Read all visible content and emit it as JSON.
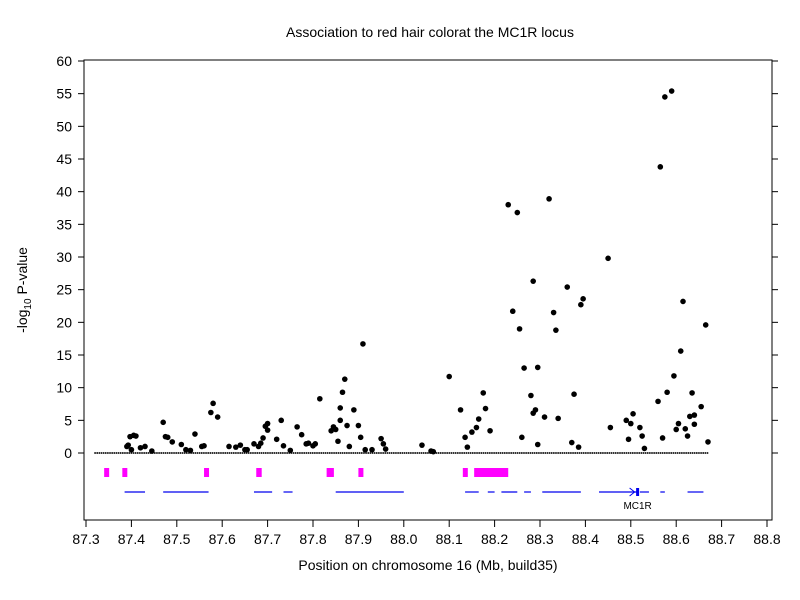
{
  "chart_data": {
    "type": "scatter",
    "title": "Association to red hair colorat the MC1R locus",
    "xlabel": "Position on chromosome 16 (Mb, build35)",
    "ylabel": {
      "prefix": "-log",
      "sub": "10",
      "suffix": " P-value"
    },
    "xlim": [
      87.3,
      88.8
    ],
    "ylim": [
      0,
      60
    ],
    "xticks": [
      87.3,
      87.4,
      87.5,
      87.6,
      87.7,
      87.8,
      87.9,
      88.0,
      88.1,
      88.2,
      88.3,
      88.4,
      88.5,
      88.6,
      88.7,
      88.8
    ],
    "xtick_labels": [
      "87.3",
      "87.4",
      "87.5",
      "87.6",
      "87.7",
      "87.8",
      "87.9",
      "88.0",
      "88.1",
      "88.2",
      "88.3",
      "88.4",
      "88.5",
      "88.6",
      "88.7",
      "88.8"
    ],
    "yticks": [
      0,
      5,
      10,
      15,
      20,
      25,
      30,
      35,
      40,
      45,
      50,
      55,
      60
    ],
    "ytick_labels": [
      "0",
      "5",
      "10",
      "15",
      "20",
      "25",
      "30",
      "35",
      "40",
      "45",
      "50",
      "55",
      "60"
    ],
    "grid": false,
    "series": [
      {
        "color": "#000000",
        "points": [
          [
            87.39,
            1
          ],
          [
            87.393,
            1.2
          ],
          [
            87.397,
            2.5
          ],
          [
            87.405,
            2.7
          ],
          [
            87.41,
            2.6
          ],
          [
            87.4,
            0.5
          ],
          [
            87.42,
            0.8
          ],
          [
            87.43,
            1
          ],
          [
            87.445,
            0.3
          ],
          [
            87.47,
            4.7
          ],
          [
            87.475,
            2.5
          ],
          [
            87.48,
            2.4
          ],
          [
            87.49,
            1.7
          ],
          [
            87.51,
            1.3
          ],
          [
            87.52,
            0.5
          ],
          [
            87.53,
            0.4
          ],
          [
            87.54,
            2.9
          ],
          [
            87.555,
            1
          ],
          [
            87.56,
            1.1
          ],
          [
            87.575,
            6.2
          ],
          [
            87.58,
            7.6
          ],
          [
            87.59,
            5.5
          ],
          [
            87.615,
            1
          ],
          [
            87.63,
            0.9
          ],
          [
            87.64,
            1.2
          ],
          [
            87.65,
            0.5
          ],
          [
            87.655,
            0.5
          ],
          [
            87.67,
            1.4
          ],
          [
            87.68,
            1
          ],
          [
            87.685,
            1.5
          ],
          [
            87.69,
            2.3
          ],
          [
            87.695,
            4.1
          ],
          [
            87.7,
            4.5
          ],
          [
            87.7,
            3.5
          ],
          [
            87.72,
            2.1
          ],
          [
            87.73,
            5
          ],
          [
            87.735,
            1.1
          ],
          [
            87.75,
            0.4
          ],
          [
            87.765,
            4
          ],
          [
            87.775,
            2.8
          ],
          [
            87.785,
            1.4
          ],
          [
            87.79,
            1.5
          ],
          [
            87.8,
            1.1
          ],
          [
            87.805,
            1.4
          ],
          [
            87.815,
            8.3
          ],
          [
            87.84,
            3.4
          ],
          [
            87.845,
            4
          ],
          [
            87.85,
            3.6
          ],
          [
            87.855,
            1.8
          ],
          [
            87.86,
            5
          ],
          [
            87.86,
            6.9
          ],
          [
            87.865,
            9.3
          ],
          [
            87.87,
            11.3
          ],
          [
            87.875,
            4.2
          ],
          [
            87.88,
            1
          ],
          [
            87.89,
            6.6
          ],
          [
            87.9,
            4.2
          ],
          [
            87.905,
            2.4
          ],
          [
            87.91,
            16.7
          ],
          [
            87.915,
            0.5
          ],
          [
            87.93,
            0.5
          ],
          [
            87.95,
            2.2
          ],
          [
            87.955,
            1.4
          ],
          [
            87.96,
            0.6
          ],
          [
            88.04,
            1.2
          ],
          [
            88.06,
            0.3
          ],
          [
            88.065,
            0.2
          ],
          [
            88.1,
            11.7
          ],
          [
            88.125,
            6.6
          ],
          [
            88.135,
            2.4
          ],
          [
            88.14,
            0.9
          ],
          [
            88.15,
            3.2
          ],
          [
            88.16,
            3.9
          ],
          [
            88.165,
            5.2
          ],
          [
            88.175,
            9.2
          ],
          [
            88.18,
            6.8
          ],
          [
            88.19,
            3.4
          ],
          [
            88.23,
            38
          ],
          [
            88.24,
            21.7
          ],
          [
            88.25,
            36.8
          ],
          [
            88.255,
            19
          ],
          [
            88.26,
            2.4
          ],
          [
            88.265,
            13
          ],
          [
            88.28,
            8.8
          ],
          [
            88.285,
            26.3
          ],
          [
            88.285,
            6.1
          ],
          [
            88.29,
            6.6
          ],
          [
            88.295,
            13.1
          ],
          [
            88.295,
            1.3
          ],
          [
            88.31,
            5.5
          ],
          [
            88.32,
            38.9
          ],
          [
            88.33,
            21.5
          ],
          [
            88.335,
            18.8
          ],
          [
            88.34,
            5.3
          ],
          [
            88.36,
            25.4
          ],
          [
            88.37,
            1.6
          ],
          [
            88.375,
            9
          ],
          [
            88.385,
            0.9
          ],
          [
            88.39,
            22.7
          ],
          [
            88.395,
            23.6
          ],
          [
            88.45,
            29.8
          ],
          [
            88.455,
            3.9
          ],
          [
            88.49,
            5
          ],
          [
            88.495,
            2.1
          ],
          [
            88.5,
            4.5
          ],
          [
            88.505,
            6
          ],
          [
            88.52,
            3.9
          ],
          [
            88.525,
            2.6
          ],
          [
            88.53,
            0.7
          ],
          [
            88.56,
            7.9
          ],
          [
            88.565,
            43.8
          ],
          [
            88.57,
            2.3
          ],
          [
            88.575,
            54.5
          ],
          [
            88.58,
            9.3
          ],
          [
            88.59,
            55.4
          ],
          [
            88.595,
            11.8
          ],
          [
            88.6,
            3.6
          ],
          [
            88.605,
            4.5
          ],
          [
            88.61,
            15.6
          ],
          [
            88.615,
            23.2
          ],
          [
            88.62,
            3.7
          ],
          [
            88.625,
            2.6
          ],
          [
            88.63,
            5.6
          ],
          [
            88.635,
            9.2
          ],
          [
            88.64,
            5.8
          ],
          [
            88.64,
            4.4
          ],
          [
            88.655,
            7.1
          ],
          [
            88.665,
            19.6
          ],
          [
            88.67,
            1.7
          ]
        ]
      }
    ],
    "baseline_markers_range": [
      87.32,
      88.67
    ],
    "magenta_track": {
      "color": "#ff00ff",
      "segments": [
        [
          87.34,
          87.35
        ],
        [
          87.38,
          87.39
        ],
        [
          87.56,
          87.57
        ],
        [
          87.675,
          87.687
        ],
        [
          87.83,
          87.846
        ],
        [
          87.9,
          87.91
        ],
        [
          88.13,
          88.14
        ],
        [
          88.155,
          88.23
        ]
      ]
    },
    "gene_track": {
      "color": "#0000ee",
      "segments": [
        [
          87.385,
          87.43
        ],
        [
          87.47,
          87.57
        ],
        [
          87.67,
          87.71
        ],
        [
          87.735,
          87.755
        ],
        [
          87.85,
          88.0
        ],
        [
          88.135,
          88.165
        ],
        [
          88.185,
          88.2
        ],
        [
          88.215,
          88.25
        ],
        [
          88.265,
          88.28
        ],
        [
          88.305,
          88.39
        ],
        [
          88.43,
          88.515
        ],
        [
          88.52,
          88.54
        ],
        [
          88.565,
          88.575
        ],
        [
          88.625,
          88.66
        ]
      ],
      "label": "MC1R",
      "label_x": 88.515
    }
  }
}
